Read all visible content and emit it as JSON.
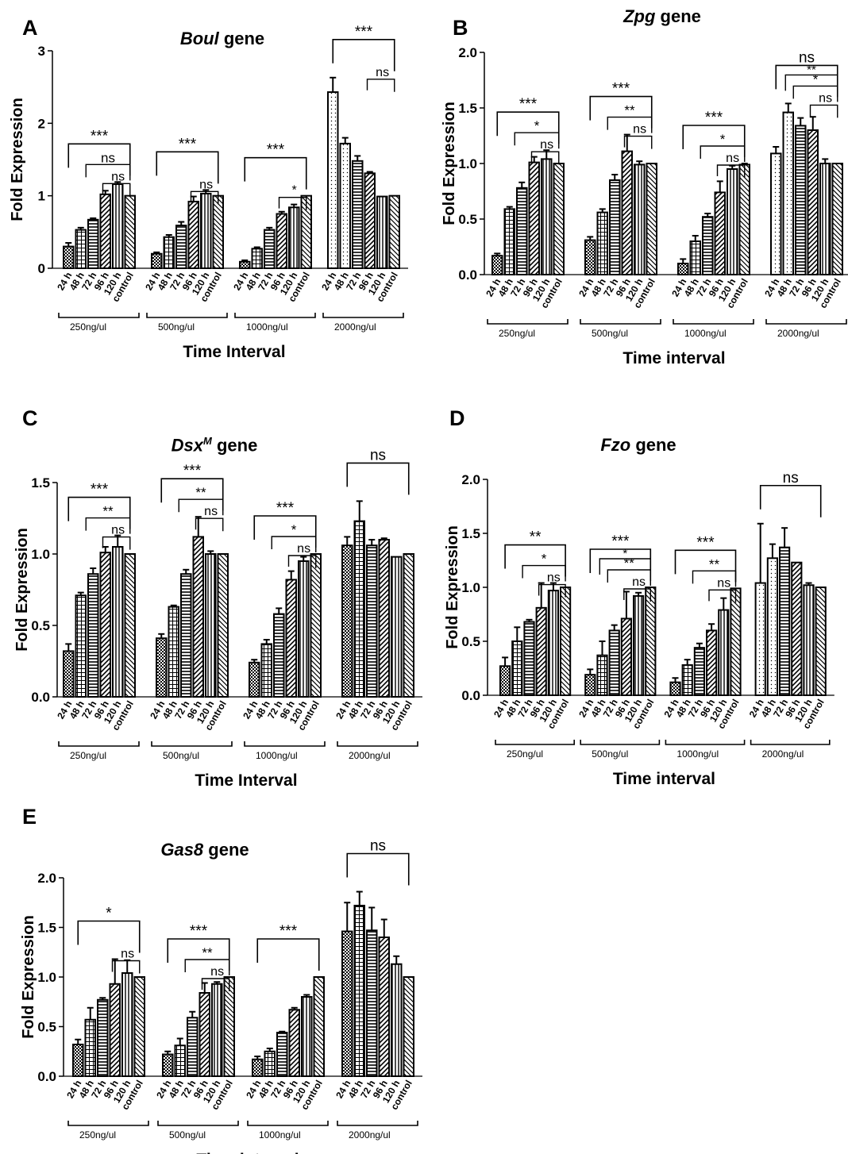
{
  "colors": {
    "bar_fill": "#ffffff",
    "bar_stroke": "#000000",
    "hatch": "#000000"
  },
  "panels": [
    {
      "letter": "A",
      "gene": "Boul",
      "gene_sup": "",
      "suffix": " gene"
    },
    {
      "letter": "B",
      "gene": "Zpg",
      "gene_sup": "",
      "suffix": " gene"
    },
    {
      "letter": "C",
      "gene": "Dsx",
      "gene_sup": "M",
      "suffix": " gene"
    },
    {
      "letter": "D",
      "gene": "Fzo",
      "gene_sup": "",
      "suffix": " gene"
    },
    {
      "letter": "E",
      "gene": "Gas8",
      "gene_sup": "",
      "suffix": " gene"
    }
  ],
  "chart_data": [
    {
      "type": "bar",
      "title": "Boul gene",
      "ylabel": "Fold Expression",
      "xlabel": "Time Interval",
      "ylim": [
        0,
        3
      ],
      "yticks": [
        "0",
        "1",
        "2",
        "3"
      ],
      "ytick_values": [
        0,
        1,
        2,
        3
      ],
      "categories": [
        "24 h",
        "48 h",
        "72 h",
        "96 h",
        "120 h",
        "control"
      ],
      "groups": [
        {
          "label": "250ng/ul",
          "values": [
            0.3,
            0.53,
            0.67,
            1.02,
            1.16,
            1.0
          ],
          "errors": [
            0.05,
            0.03,
            0.02,
            0.05,
            0.03,
            0.0
          ]
        },
        {
          "label": "500ng/ul",
          "values": [
            0.2,
            0.43,
            0.59,
            0.92,
            1.03,
            1.0
          ],
          "errors": [
            0.02,
            0.03,
            0.05,
            0.07,
            0.05,
            0.0
          ]
        },
        {
          "label": "1000ng/ul",
          "values": [
            0.09,
            0.27,
            0.53,
            0.75,
            0.84,
            1.0
          ],
          "errors": [
            0.02,
            0.02,
            0.03,
            0.03,
            0.04,
            0.0
          ]
        },
        {
          "label": "2000ng/ul",
          "values": [
            2.43,
            1.72,
            1.48,
            1.31,
            0.99,
            1.0
          ],
          "errors": [
            0.2,
            0.08,
            0.07,
            0.02,
            0.0,
            0.0
          ]
        }
      ],
      "annotations": [
        {
          "group": 0,
          "ns": "ns",
          "mid": "ns",
          "top": "***"
        },
        {
          "group": 1,
          "ns": "ns",
          "mid": "",
          "top": "***"
        },
        {
          "group": 2,
          "ns": "*",
          "mid": "",
          "top": "***"
        },
        {
          "group": 3,
          "ns": "ns",
          "mid": "",
          "top": "***"
        }
      ]
    },
    {
      "type": "bar",
      "title": "Zpg gene",
      "ylabel": "Fold Expression",
      "xlabel": "Time interval",
      "ylim": [
        0,
        2.0
      ],
      "yticks": [
        "0.0",
        "0.5",
        "1.0",
        "1.5",
        "2.0"
      ],
      "ytick_values": [
        0,
        0.5,
        1.0,
        1.5,
        2.0
      ],
      "categories": [
        "24 h",
        "48 h",
        "72 h",
        "96 h",
        "120 h",
        "control"
      ],
      "groups": [
        {
          "label": "250ng/ul",
          "values": [
            0.17,
            0.59,
            0.78,
            1.01,
            1.04,
            1.0
          ],
          "errors": [
            0.02,
            0.02,
            0.05,
            0.05,
            0.08,
            0.0
          ]
        },
        {
          "label": "500ng/ul",
          "values": [
            0.31,
            0.56,
            0.85,
            1.11,
            0.99,
            1.0
          ],
          "errors": [
            0.03,
            0.03,
            0.05,
            0.15,
            0.03,
            0.0
          ]
        },
        {
          "label": "1000ng/ul",
          "values": [
            0.1,
            0.3,
            0.52,
            0.74,
            0.95,
            0.99
          ],
          "errors": [
            0.04,
            0.05,
            0.03,
            0.1,
            0.03,
            0.01
          ]
        },
        {
          "label": "2000ng/ul",
          "values": [
            1.09,
            1.46,
            1.34,
            1.3,
            1.0,
            1.0
          ],
          "errors": [
            0.06,
            0.08,
            0.07,
            0.12,
            0.04,
            0.0
          ]
        }
      ],
      "annotations": [
        {
          "group": 0,
          "ns": "ns",
          "mid": "*",
          "top": "***"
        },
        {
          "group": 1,
          "ns": "ns",
          "mid": "**",
          "top": "***"
        },
        {
          "group": 2,
          "ns": "ns",
          "mid": "*",
          "top": "***"
        },
        {
          "group": 3,
          "ns": "ns",
          "mid": "*",
          "top": "ns",
          "extra": "**"
        }
      ]
    },
    {
      "type": "bar",
      "title": "DsxM gene",
      "ylabel": "Fold Expression",
      "xlabel": "Time Interval",
      "ylim": [
        0,
        1.5
      ],
      "yticks": [
        "0.0",
        "0.5",
        "1.0",
        "1.5"
      ],
      "ytick_values": [
        0,
        0.5,
        1.0,
        1.5
      ],
      "categories": [
        "24 h",
        "48 h",
        "72 h",
        "96 h",
        "120 h",
        "control"
      ],
      "groups": [
        {
          "label": "250ng/ul",
          "values": [
            0.32,
            0.71,
            0.86,
            1.01,
            1.05,
            1.0
          ],
          "errors": [
            0.05,
            0.02,
            0.04,
            0.04,
            0.08,
            0.0
          ]
        },
        {
          "label": "500ng/ul",
          "values": [
            0.41,
            0.63,
            0.86,
            1.12,
            1.0,
            1.0
          ],
          "errors": [
            0.03,
            0.01,
            0.03,
            0.14,
            0.02,
            0.0
          ]
        },
        {
          "label": "1000ng/ul",
          "values": [
            0.24,
            0.37,
            0.58,
            0.82,
            0.95,
            1.0
          ],
          "errors": [
            0.02,
            0.03,
            0.04,
            0.06,
            0.03,
            0.0
          ]
        },
        {
          "label": "2000ng/ul",
          "values": [
            1.06,
            1.23,
            1.06,
            1.1,
            0.98,
            1.0
          ],
          "errors": [
            0.06,
            0.14,
            0.04,
            0.01,
            0.0,
            0.0
          ]
        }
      ],
      "annotations": [
        {
          "group": 0,
          "ns": "ns",
          "mid": "**",
          "top": "***"
        },
        {
          "group": 1,
          "ns": "ns",
          "mid": "**",
          "top": "***"
        },
        {
          "group": 2,
          "ns": "ns",
          "mid": "*",
          "top": "***"
        },
        {
          "group": 3,
          "ns": "",
          "mid": "",
          "top": "ns"
        }
      ]
    },
    {
      "type": "bar",
      "title": "Fzo gene",
      "ylabel": "Fold Expression",
      "xlabel": "Time interval",
      "ylim": [
        0,
        2.0
      ],
      "yticks": [
        "0.0",
        "0.5",
        "1.0",
        "1.5",
        "2.0"
      ],
      "ytick_values": [
        0,
        0.5,
        1.0,
        1.5,
        2.0
      ],
      "categories": [
        "24 h",
        "48 h",
        "72 h",
        "96 h",
        "120 h",
        "control"
      ],
      "groups": [
        {
          "label": "250ng/ul",
          "values": [
            0.27,
            0.5,
            0.68,
            0.81,
            0.97,
            1.0
          ],
          "errors": [
            0.08,
            0.13,
            0.02,
            0.23,
            0.07,
            0.0
          ]
        },
        {
          "label": "500ng/ul",
          "values": [
            0.19,
            0.37,
            0.6,
            0.71,
            0.92,
            1.0
          ],
          "errors": [
            0.05,
            0.13,
            0.05,
            0.25,
            0.03,
            0.0
          ]
        },
        {
          "label": "1000ng/ul",
          "values": [
            0.12,
            0.28,
            0.44,
            0.6,
            0.79,
            0.99
          ],
          "errors": [
            0.04,
            0.05,
            0.04,
            0.06,
            0.11,
            0.0
          ]
        },
        {
          "label": "2000ng/ul",
          "values": [
            1.04,
            1.27,
            1.37,
            1.23,
            1.02,
            1.0
          ],
          "errors": [
            0.55,
            0.13,
            0.18,
            0.0,
            0.02,
            0.0
          ]
        }
      ],
      "annotations": [
        {
          "group": 0,
          "ns": "ns",
          "mid": "*",
          "top": "**"
        },
        {
          "group": 1,
          "ns": "ns",
          "mid": "**",
          "top": "***",
          "extra": "*"
        },
        {
          "group": 2,
          "ns": "ns",
          "mid": "**",
          "top": "***"
        },
        {
          "group": 3,
          "ns": "",
          "mid": "",
          "top": "ns"
        }
      ]
    },
    {
      "type": "bar",
      "title": "Gas8 gene",
      "ylabel": "Fold Expression",
      "xlabel": "Time interval",
      "ylim": [
        0,
        2.0
      ],
      "yticks": [
        "0.0",
        "0.5",
        "1.0",
        "1.5",
        "2.0"
      ],
      "ytick_values": [
        0,
        0.5,
        1.0,
        1.5,
        2.0
      ],
      "categories": [
        "24 h",
        "48 h",
        "72 h",
        "96 h",
        "120 h",
        "control"
      ],
      "groups": [
        {
          "label": "250ng/ul",
          "values": [
            0.32,
            0.57,
            0.77,
            0.93,
            1.04,
            1.0
          ],
          "errors": [
            0.05,
            0.12,
            0.02,
            0.25,
            0.13,
            0.0
          ]
        },
        {
          "label": "500ng/ul",
          "values": [
            0.22,
            0.31,
            0.59,
            0.84,
            0.93,
            1.0
          ],
          "errors": [
            0.03,
            0.07,
            0.06,
            0.1,
            0.02,
            0.0
          ]
        },
        {
          "label": "1000ng/ul",
          "values": [
            0.17,
            0.25,
            0.44,
            0.67,
            0.8,
            1.0
          ],
          "errors": [
            0.03,
            0.03,
            0.01,
            0.02,
            0.02,
            0.0
          ]
        },
        {
          "label": "2000ng/ul",
          "values": [
            1.46,
            1.72,
            1.47,
            1.4,
            1.13,
            1.0
          ],
          "errors": [
            0.29,
            0.14,
            0.23,
            0.18,
            0.08,
            0.0
          ]
        }
      ],
      "annotations": [
        {
          "group": 0,
          "ns": "ns",
          "mid": "",
          "top": "*"
        },
        {
          "group": 1,
          "ns": "ns",
          "mid": "**",
          "top": "***"
        },
        {
          "group": 2,
          "ns": "",
          "mid": "",
          "top": "***"
        },
        {
          "group": 3,
          "ns": "",
          "mid": "",
          "top": "ns"
        }
      ]
    }
  ]
}
